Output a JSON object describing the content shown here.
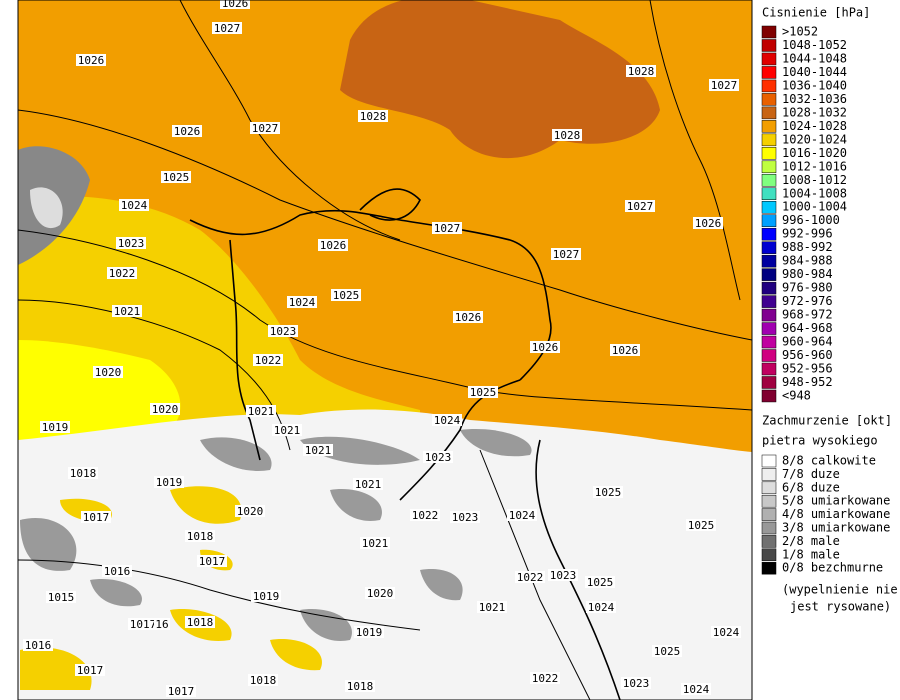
{
  "legend": {
    "pressure": {
      "title": "Cisnienie [hPa]",
      "items": [
        {
          "label": ">1052",
          "color": "#800000"
        },
        {
          "label": "1048-1052",
          "color": "#c00000"
        },
        {
          "label": "1044-1048",
          "color": "#e00000"
        },
        {
          "label": "1040-1044",
          "color": "#ff0000"
        },
        {
          "label": "1036-1040",
          "color": "#ff3000"
        },
        {
          "label": "1032-1036",
          "color": "#e86000"
        },
        {
          "label": "1028-1032",
          "color": "#c86414"
        },
        {
          "label": "1024-1028",
          "color": "#f29e00"
        },
        {
          "label": "1020-1024",
          "color": "#f5d000"
        },
        {
          "label": "1016-1020",
          "color": "#ffff00"
        },
        {
          "label": "1012-1016",
          "color": "#c0ff40"
        },
        {
          "label": "1008-1012",
          "color": "#80ff80"
        },
        {
          "label": "1004-1008",
          "color": "#40e0c0"
        },
        {
          "label": "1000-1004",
          "color": "#00c8ff"
        },
        {
          "label": "996-1000",
          "color": "#00a0ff"
        },
        {
          "label": "992-996",
          "color": "#0000ff"
        },
        {
          "label": "988-992",
          "color": "#0000d0"
        },
        {
          "label": "984-988",
          "color": "#0000a0"
        },
        {
          "label": "980-984",
          "color": "#000080"
        },
        {
          "label": "976-980",
          "color": "#200080"
        },
        {
          "label": "972-976",
          "color": "#400090"
        },
        {
          "label": "968-972",
          "color": "#800090"
        },
        {
          "label": "964-968",
          "color": "#a000b0"
        },
        {
          "label": "960-964",
          "color": "#c000a0"
        },
        {
          "label": "956-960",
          "color": "#d00080"
        },
        {
          "label": "952-956",
          "color": "#c00060"
        },
        {
          "label": "948-952",
          "color": "#a00040"
        },
        {
          "label": "<948",
          "color": "#800030"
        }
      ]
    },
    "clouds": {
      "title": "Zachmurzenie [okt]",
      "subtitle": "pietra wysokiego",
      "items": [
        {
          "label": "8/8 calkowite",
          "color": "#ffffff"
        },
        {
          "label": "7/8 duze",
          "color": "#eeeeee"
        },
        {
          "label": "6/8 duze",
          "color": "#dddddd"
        },
        {
          "label": "5/8 umiarkowane",
          "color": "#c8c8c8"
        },
        {
          "label": "4/8 umiarkowane",
          "color": "#b0b0b0"
        },
        {
          "label": "3/8 umiarkowane",
          "color": "#989898"
        },
        {
          "label": "2/8 male",
          "color": "#707070"
        },
        {
          "label": "1/8 male",
          "color": "#484848"
        },
        {
          "label": "0/8 bezchmurne",
          "color": "#000000"
        }
      ],
      "note": [
        "(wypelnienie nie",
        "jest rysowane)"
      ]
    }
  },
  "isobar_labels": [
    "1026",
    "1027",
    "1026",
    "1028",
    "1027",
    "1026",
    "1027",
    "1028",
    "1028",
    "1025",
    "1024",
    "1027",
    "1026",
    "1023",
    "1026",
    "1027",
    "1027",
    "1022",
    "1024",
    "1025",
    "1021",
    "1023",
    "1026",
    "1026",
    "1026",
    "1022",
    "1020",
    "1025",
    "1020",
    "1021",
    "1024",
    "1019",
    "1021",
    "1021",
    "1023",
    "1018",
    "1019",
    "1021",
    "1025",
    "1017",
    "1020",
    "1022",
    "1023",
    "1024",
    "1025",
    "1018",
    "1021",
    "1017",
    "1016",
    "1022",
    "1023",
    "1025",
    "1015",
    "1019",
    "1020",
    "1021",
    "1024",
    "1017",
    "16",
    "1018",
    "1019",
    "1024",
    "1016",
    "1025",
    "1017",
    "1022",
    "1023",
    "1018",
    "1018",
    "1024",
    "1017"
  ]
}
